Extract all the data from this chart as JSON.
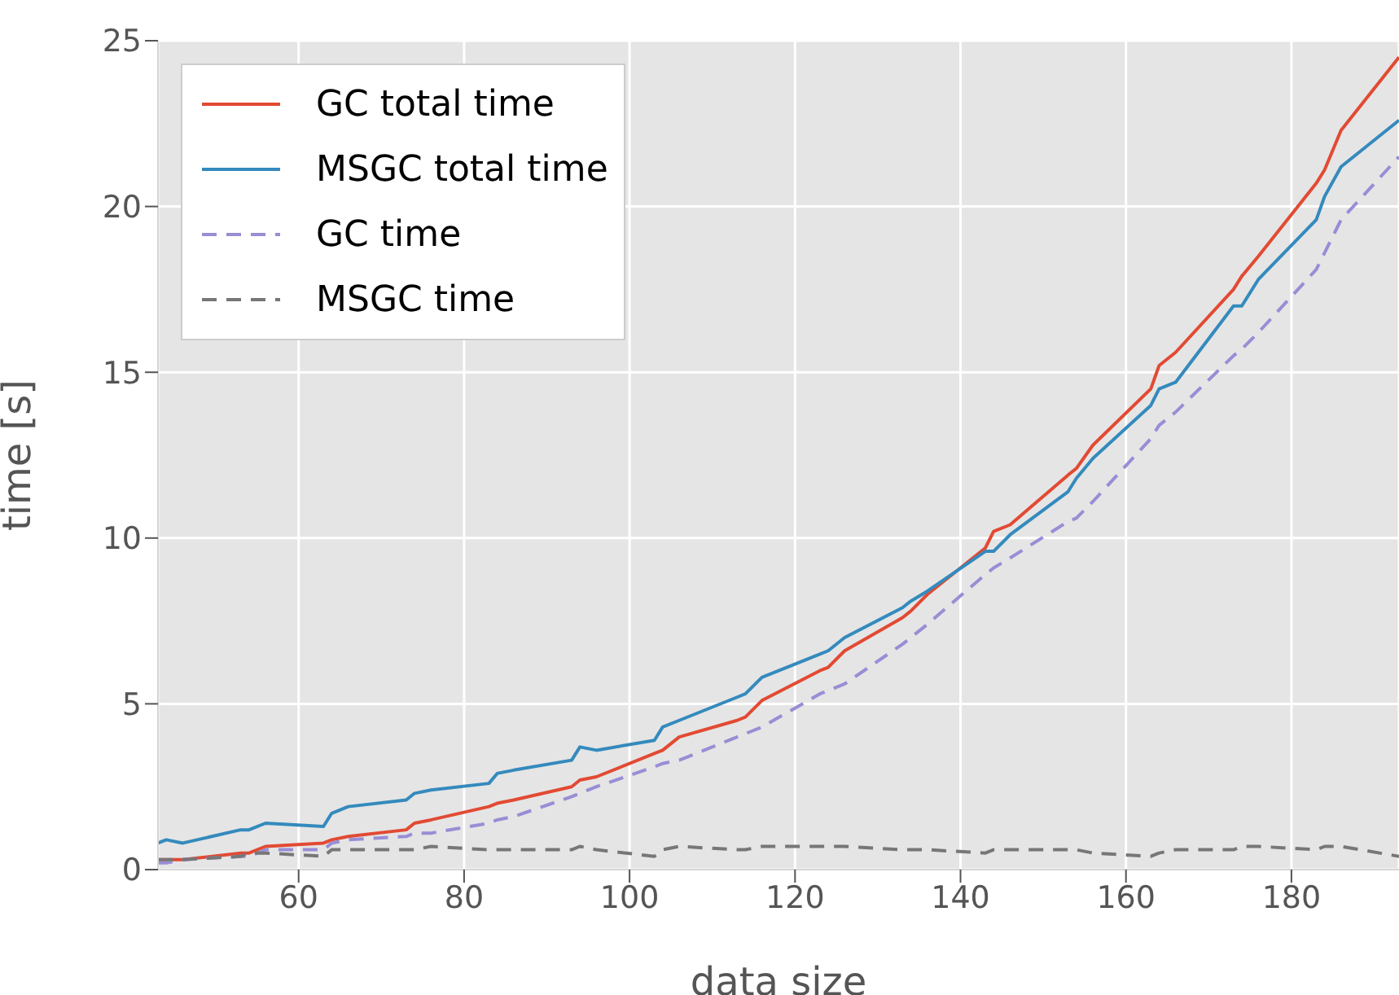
{
  "chart_data": {
    "type": "line",
    "xlabel": "data size",
    "ylabel": "time [s]",
    "x": [
      43,
      44,
      46,
      53,
      54,
      56,
      63,
      64,
      66,
      73,
      74,
      76,
      83,
      84,
      86,
      93,
      94,
      96,
      103,
      104,
      106,
      113,
      114,
      116,
      123,
      124,
      126,
      133,
      134,
      136,
      143,
      144,
      146,
      153,
      154,
      156,
      163,
      164,
      166,
      173,
      174,
      176,
      183,
      184,
      186,
      193
    ],
    "series": [
      {
        "name": "GC total time",
        "color": "#e24a33",
        "line_style": "solid",
        "values": [
          0.3,
          0.3,
          0.3,
          0.5,
          0.5,
          0.7,
          0.8,
          0.9,
          1.0,
          1.2,
          1.4,
          1.5,
          1.9,
          2.0,
          2.1,
          2.5,
          2.7,
          2.8,
          3.5,
          3.6,
          4.0,
          4.5,
          4.6,
          5.1,
          6.0,
          6.1,
          6.6,
          7.6,
          7.8,
          8.3,
          9.7,
          10.2,
          10.4,
          11.9,
          12.1,
          12.8,
          14.5,
          15.2,
          15.6,
          17.5,
          17.9,
          18.5,
          20.7,
          21.1,
          22.3,
          24.5
        ]
      },
      {
        "name": "MSGC total time",
        "color": "#348abd",
        "line_style": "solid",
        "values": [
          0.8,
          0.9,
          0.8,
          1.2,
          1.2,
          1.4,
          1.3,
          1.7,
          1.9,
          2.1,
          2.3,
          2.4,
          2.6,
          2.9,
          3.0,
          3.3,
          3.7,
          3.6,
          3.9,
          4.3,
          4.5,
          5.2,
          5.3,
          5.8,
          6.5,
          6.6,
          7.0,
          7.9,
          8.1,
          8.4,
          9.6,
          9.6,
          10.1,
          11.4,
          11.8,
          12.4,
          14.0,
          14.5,
          14.7,
          17.0,
          17.0,
          17.8,
          19.6,
          20.3,
          21.2,
          22.6
        ]
      },
      {
        "name": "GC time",
        "color": "#988ed5",
        "line_style": "dashed",
        "values": [
          0.2,
          0.2,
          0.3,
          0.4,
          0.4,
          0.6,
          0.6,
          0.8,
          0.9,
          1.0,
          1.1,
          1.1,
          1.4,
          1.5,
          1.6,
          2.2,
          2.3,
          2.5,
          3.1,
          3.2,
          3.3,
          4.0,
          4.1,
          4.3,
          5.3,
          5.4,
          5.6,
          6.8,
          7.0,
          7.4,
          8.9,
          9.1,
          9.4,
          10.5,
          10.6,
          11.1,
          13.0,
          13.4,
          13.8,
          15.5,
          15.7,
          16.2,
          18.1,
          18.6,
          19.6,
          21.5
        ]
      },
      {
        "name": "MSGC time",
        "color": "#777777",
        "line_style": "dashed",
        "values": [
          0.3,
          0.3,
          0.3,
          0.4,
          0.5,
          0.5,
          0.4,
          0.6,
          0.6,
          0.6,
          0.6,
          0.7,
          0.6,
          0.6,
          0.6,
          0.6,
          0.7,
          0.6,
          0.4,
          0.6,
          0.7,
          0.6,
          0.6,
          0.7,
          0.7,
          0.7,
          0.7,
          0.6,
          0.6,
          0.6,
          0.5,
          0.6,
          0.6,
          0.6,
          0.6,
          0.5,
          0.4,
          0.5,
          0.6,
          0.6,
          0.7,
          0.7,
          0.6,
          0.7,
          0.7,
          0.4
        ]
      }
    ],
    "xlim": [
      43,
      193
    ],
    "xticks": [
      60,
      80,
      100,
      120,
      140,
      160,
      180
    ],
    "ylim": [
      0,
      25
    ],
    "yticks": [
      0,
      5,
      10,
      15,
      20,
      25
    ],
    "grid": true,
    "legend": "top left"
  }
}
